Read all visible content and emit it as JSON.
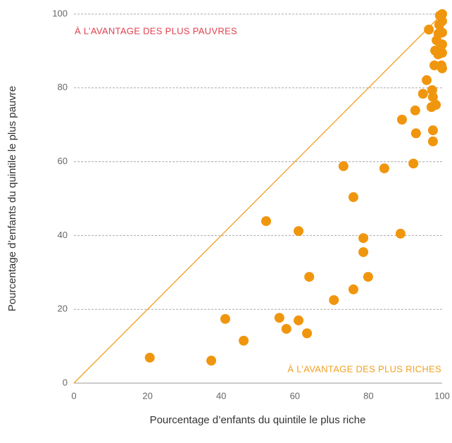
{
  "chart_data": {
    "type": "scatter",
    "x_label": "Pourcentage d’enfants du quintile le plus riche",
    "y_label": "Pourcentage d’enfants du quintile le plus pauvre",
    "annotations": [
      "À L’AVANTAGE DES PLUS PAUVRES",
      "À L’AVANTAGE DES PLUS RICHES"
    ],
    "annotation_colors": [
      "#e0404f",
      "#f0a020"
    ],
    "color": "#f0960e",
    "x": [
      20.6,
      37.3,
      41.1,
      46.1,
      52.2,
      55.8,
      57.7,
      61.0,
      61.0,
      63.3,
      63.9,
      70.6,
      73.2,
      75.9,
      75.9,
      78.6,
      78.6,
      79.9,
      84.3,
      88.7,
      89.1,
      92.2,
      92.7,
      92.9,
      94.8,
      95.8,
      96.4,
      97.1,
      97.3,
      97.5,
      97.5,
      97.5,
      97.9,
      98.1,
      98.3,
      98.5,
      98.9,
      99.0,
      99.2,
      99.4,
      99.6,
      99.8,
      100,
      100,
      100,
      100,
      100,
      99.4,
      100
    ],
    "values": [
      6.9,
      6.1,
      17.4,
      11.5,
      43.9,
      17.7,
      14.7,
      41.2,
      17.0,
      13.5,
      28.8,
      22.5,
      58.8,
      50.4,
      25.4,
      39.3,
      35.5,
      28.8,
      58.2,
      40.5,
      71.4,
      59.5,
      73.9,
      67.7,
      78.4,
      82.1,
      95.8,
      74.8,
      79.4,
      77.5,
      68.5,
      65.5,
      86.1,
      90.1,
      75.4,
      92.9,
      89.1,
      94.7,
      97.1,
      99.6,
      91.2,
      86.1,
      85.3,
      100,
      98.1,
      95.0,
      89.5,
      90.5,
      91.8
    ],
    "xlim": [
      0,
      100
    ],
    "ylim": [
      0,
      100
    ],
    "xticks": [
      0,
      20,
      40,
      60,
      80,
      100
    ],
    "yticks": [
      0,
      20,
      40,
      60,
      80,
      100
    ],
    "grid": true
  }
}
